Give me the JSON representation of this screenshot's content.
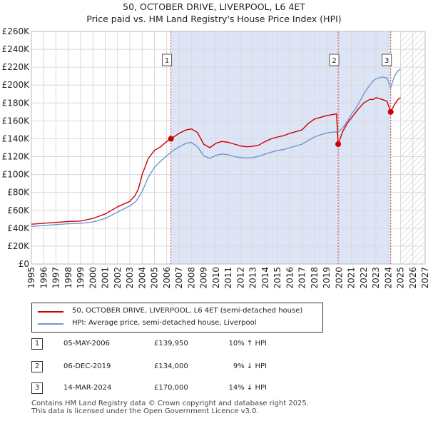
{
  "chart_data": {
    "type": "line",
    "title": "50, OCTOBER DRIVE, LIVERPOOL, L6 4ET",
    "subtitle": "Price paid vs. HM Land Registry's House Price Index (HPI)",
    "xlim": [
      1995,
      2027
    ],
    "ylim": [
      0,
      260000
    ],
    "x_ticks": [
      "1995",
      "1996",
      "1997",
      "1998",
      "1999",
      "2000",
      "2001",
      "2002",
      "2003",
      "2004",
      "2005",
      "2006",
      "2007",
      "2008",
      "2009",
      "2010",
      "2011",
      "2012",
      "2013",
      "2014",
      "2015",
      "2016",
      "2017",
      "2018",
      "2019",
      "2020",
      "2021",
      "2022",
      "2023",
      "2024",
      "2025",
      "2026",
      "2027"
    ],
    "y_ticks": [
      {
        "value": 0,
        "label": "£0"
      },
      {
        "value": 20000,
        "label": "£20K"
      },
      {
        "value": 40000,
        "label": "£40K"
      },
      {
        "value": 60000,
        "label": "£60K"
      },
      {
        "value": 80000,
        "label": "£80K"
      },
      {
        "value": 100000,
        "label": "£100K"
      },
      {
        "value": 120000,
        "label": "£120K"
      },
      {
        "value": 140000,
        "label": "£140K"
      },
      {
        "value": 160000,
        "label": "£160K"
      },
      {
        "value": 180000,
        "label": "£180K"
      },
      {
        "value": 200000,
        "label": "£200K"
      },
      {
        "value": 220000,
        "label": "£220K"
      },
      {
        "value": 240000,
        "label": "£240K"
      },
      {
        "value": 260000,
        "label": "£260K"
      }
    ],
    "ownership_shade": {
      "from": 2006.34,
      "to": 2024.2,
      "color": "#dde4f6"
    },
    "future_hatch_from": 2025.0,
    "grid": true,
    "series": [
      {
        "name": "50, OCTOBER DRIVE, LIVERPOOL, L6 4ET (semi-detached house)",
        "color": "#cc0000",
        "points": [
          [
            1995.0,
            44500
          ],
          [
            1996.0,
            45500
          ],
          [
            1997.0,
            46500
          ],
          [
            1998.0,
            47500
          ],
          [
            1999.0,
            48000
          ],
          [
            2000.0,
            51000
          ],
          [
            2001.0,
            56000
          ],
          [
            2002.0,
            64000
          ],
          [
            2003.0,
            70000
          ],
          [
            2003.4,
            76000
          ],
          [
            2003.7,
            84000
          ],
          [
            2004.0,
            100000
          ],
          [
            2004.5,
            118000
          ],
          [
            2005.0,
            127000
          ],
          [
            2005.5,
            131000
          ],
          [
            2006.0,
            137000
          ],
          [
            2006.34,
            139950
          ],
          [
            2007.0,
            146000
          ],
          [
            2007.6,
            150000
          ],
          [
            2008.0,
            151000
          ],
          [
            2008.5,
            147000
          ],
          [
            2009.0,
            134000
          ],
          [
            2009.5,
            130000
          ],
          [
            2010.0,
            135000
          ],
          [
            2010.5,
            137000
          ],
          [
            2011.0,
            136000
          ],
          [
            2011.5,
            134000
          ],
          [
            2012.0,
            132000
          ],
          [
            2012.5,
            131000
          ],
          [
            2013.0,
            131500
          ],
          [
            2013.5,
            133000
          ],
          [
            2014.0,
            137000
          ],
          [
            2014.5,
            140000
          ],
          [
            2015.0,
            142000
          ],
          [
            2015.5,
            143500
          ],
          [
            2016.0,
            146000
          ],
          [
            2016.5,
            148000
          ],
          [
            2017.0,
            150000
          ],
          [
            2017.5,
            157000
          ],
          [
            2018.0,
            162000
          ],
          [
            2018.5,
            164000
          ],
          [
            2019.0,
            166000
          ],
          [
            2019.5,
            167000
          ],
          [
            2019.8,
            168000
          ],
          [
            2019.93,
            134000
          ],
          [
            2020.3,
            148000
          ],
          [
            2020.7,
            158000
          ],
          [
            2021.0,
            163000
          ],
          [
            2021.5,
            172000
          ],
          [
            2022.0,
            180000
          ],
          [
            2022.5,
            184000
          ],
          [
            2022.8,
            184000
          ],
          [
            2023.0,
            186000
          ],
          [
            2023.5,
            184000
          ],
          [
            2023.9,
            182000
          ],
          [
            2024.2,
            170000
          ],
          [
            2024.5,
            178000
          ],
          [
            2024.8,
            184000
          ],
          [
            2025.0,
            186000
          ]
        ]
      },
      {
        "name": "HPI: Average price, semi-detached house, Liverpool",
        "color": "#6f96d0",
        "points": [
          [
            1995.0,
            42000
          ],
          [
            1996.0,
            43000
          ],
          [
            1997.0,
            44000
          ],
          [
            1998.0,
            45000
          ],
          [
            1999.0,
            45500
          ],
          [
            2000.0,
            47000
          ],
          [
            2001.0,
            51000
          ],
          [
            2002.0,
            58000
          ],
          [
            2003.0,
            65000
          ],
          [
            2003.5,
            70000
          ],
          [
            2004.0,
            81000
          ],
          [
            2004.5,
            97000
          ],
          [
            2005.0,
            108000
          ],
          [
            2005.5,
            115000
          ],
          [
            2006.0,
            121000
          ],
          [
            2006.34,
            125000
          ],
          [
            2007.0,
            131000
          ],
          [
            2007.6,
            135000
          ],
          [
            2008.0,
            136000
          ],
          [
            2008.5,
            131000
          ],
          [
            2009.0,
            121000
          ],
          [
            2009.5,
            118000
          ],
          [
            2010.0,
            121500
          ],
          [
            2010.5,
            123000
          ],
          [
            2011.0,
            122000
          ],
          [
            2011.5,
            120000
          ],
          [
            2012.0,
            119000
          ],
          [
            2012.5,
            118500
          ],
          [
            2013.0,
            119000
          ],
          [
            2013.5,
            120500
          ],
          [
            2014.0,
            123000
          ],
          [
            2014.5,
            125000
          ],
          [
            2015.0,
            127000
          ],
          [
            2015.5,
            128000
          ],
          [
            2016.0,
            130000
          ],
          [
            2016.5,
            132000
          ],
          [
            2017.0,
            134000
          ],
          [
            2017.5,
            138000
          ],
          [
            2018.0,
            142000
          ],
          [
            2018.5,
            144500
          ],
          [
            2019.0,
            146500
          ],
          [
            2019.5,
            147500
          ],
          [
            2019.93,
            147500
          ],
          [
            2020.3,
            152000
          ],
          [
            2020.7,
            160000
          ],
          [
            2021.0,
            167000
          ],
          [
            2021.5,
            177000
          ],
          [
            2022.0,
            190000
          ],
          [
            2022.5,
            200000
          ],
          [
            2022.8,
            205000
          ],
          [
            2023.0,
            207000
          ],
          [
            2023.5,
            209000
          ],
          [
            2023.9,
            208000
          ],
          [
            2024.2,
            197000
          ],
          [
            2024.5,
            210000
          ],
          [
            2024.8,
            216000
          ],
          [
            2025.0,
            218000
          ]
        ]
      }
    ],
    "sale_markers": [
      {
        "label": "1",
        "x": 2006.34,
        "y": 139950
      },
      {
        "label": "2",
        "x": 2019.93,
        "y": 134000
      },
      {
        "label": "3",
        "x": 2024.2,
        "y": 170000
      }
    ]
  },
  "legend": {
    "items": [
      {
        "label": "50, OCTOBER DRIVE, LIVERPOOL, L6 4ET (semi-detached house)",
        "color": "#cc0000"
      },
      {
        "label": "HPI: Average price, semi-detached house, Liverpool",
        "color": "#6f96d0"
      }
    ]
  },
  "sales": [
    {
      "num": "1",
      "date": "05-MAY-2006",
      "price": "£139,950",
      "hpi": "10% ↑ HPI"
    },
    {
      "num": "2",
      "date": "06-DEC-2019",
      "price": "£134,000",
      "hpi": "9% ↓ HPI"
    },
    {
      "num": "3",
      "date": "14-MAR-2024",
      "price": "£170,000",
      "hpi": "14% ↓ HPI"
    }
  ],
  "footer": {
    "line1": "Contains HM Land Registry data © Crown copyright and database right 2025.",
    "line2": "This data is licensed under the Open Government Licence v3.0."
  }
}
